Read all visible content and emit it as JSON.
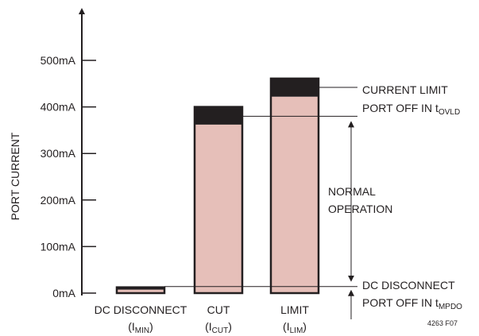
{
  "chart_data": {
    "type": "bar",
    "title": "",
    "ylabel": "PORT CURRENT",
    "xlabel": "",
    "ylim": [
      0,
      500
    ],
    "y_ticks": [
      0,
      100,
      200,
      300,
      400,
      500
    ],
    "y_tick_labels": [
      "0mA",
      "100mA",
      "200mA",
      "300mA",
      "400mA",
      "500mA"
    ],
    "categories": [
      {
        "label": "DC DISCONNECT",
        "sub_prefix": "(I",
        "sub_script": "MIN",
        "sub_suffix": ")"
      },
      {
        "label": "CUT",
        "sub_prefix": "(I",
        "sub_script": "CUT",
        "sub_suffix": ")"
      },
      {
        "label": "LIMIT",
        "sub_prefix": "(I",
        "sub_script": "LIM",
        "sub_suffix": ")"
      }
    ],
    "bars": [
      {
        "min": 7.5,
        "max": 12.5
      },
      {
        "min": 362,
        "max": 400
      },
      {
        "min": 422,
        "max": 461
      }
    ],
    "reference_lines": [
      {
        "value": 380,
        "bar_index": 1
      },
      {
        "value": 14,
        "bar_index": 0
      }
    ],
    "annotations": [
      {
        "text": "CURRENT LIMIT",
        "value": 442
      },
      {
        "text": "PORT OFF IN t",
        "sub": "OVLD",
        "value": 380
      },
      {
        "text": "NORMAL",
        "value": 210
      },
      {
        "text": "OPERATION",
        "value": 210
      },
      {
        "text": "DC DISCONNECT",
        "value": 14
      },
      {
        "text": "PORT OFF IN t",
        "sub": "MPDO",
        "value": 14
      }
    ],
    "colors": {
      "fill": "#e6bfb9",
      "uncertainty": "#231f20",
      "outline": "#231f20",
      "text": "#231f20"
    }
  },
  "figure_id": "4263 F07"
}
